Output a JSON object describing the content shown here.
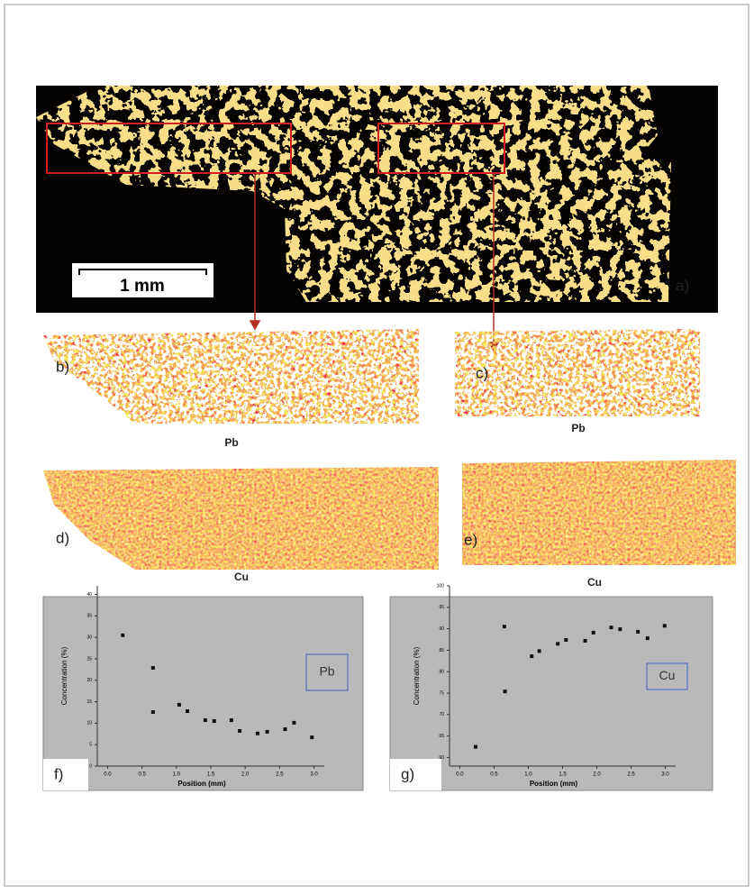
{
  "figure": {
    "panel_labels": [
      "a)",
      "b)",
      "c)",
      "d)",
      "e)",
      "f)",
      "g)"
    ],
    "scale_bar": "1 mm",
    "map_labels": [
      "Pb",
      "Pb",
      "Cu",
      "Cu"
    ]
  },
  "chart_data": [
    {
      "type": "scatter",
      "x_label": "Position (mm)",
      "y_label": "Concentration (%)",
      "xlim": [
        -0.15,
        3.15
      ],
      "ylim": [
        0,
        42
      ],
      "xticks": [
        {
          "value": 0,
          "label": "0.0"
        },
        0.5,
        {
          "value": 1,
          "label": "1.0"
        },
        1.5,
        {
          "value": 2,
          "label": "2.0"
        },
        2.5,
        {
          "value": 3,
          "label": "3.0"
        }
      ],
      "yticks": [
        0,
        5,
        10,
        15,
        20,
        25,
        30,
        35,
        40
      ],
      "series": [
        {
          "name": "Pb",
          "color": "#111111",
          "x": [
            0.22,
            0.66,
            0.66,
            1.04,
            1.16,
            1.42,
            1.55,
            1.8,
            1.92,
            2.18,
            2.32,
            2.58,
            2.71,
            2.97
          ],
          "values": [
            30.5,
            22.9,
            12.6,
            14.3,
            12.8,
            10.7,
            10.5,
            10.7,
            8.2,
            7.6,
            8.0,
            8.6,
            10.1,
            6.7
          ]
        }
      ]
    },
    {
      "type": "scatter",
      "x_label": "Position (mm)",
      "y_label": "Concentration (%)",
      "xlim": [
        -0.15,
        3.15
      ],
      "ylim": [
        58,
        100
      ],
      "xticks": [
        {
          "value": 0,
          "label": "0.0"
        },
        0.5,
        {
          "value": 1,
          "label": "1.0"
        },
        1.5,
        {
          "value": 2,
          "label": "2.0"
        },
        2.5,
        {
          "value": 3,
          "label": "3.0"
        }
      ],
      "yticks": [
        60,
        65,
        70,
        75,
        80,
        85,
        90,
        95,
        100
      ],
      "series": [
        {
          "name": "Cu",
          "color": "#111111",
          "x": [
            0.23,
            0.65,
            0.66,
            1.05,
            1.16,
            1.43,
            1.55,
            1.83,
            1.95,
            2.21,
            2.34,
            2.6,
            2.74,
            2.99
          ],
          "values": [
            62.5,
            90.5,
            75.4,
            83.6,
            84.8,
            86.5,
            87.4,
            87.2,
            89.1,
            90.3,
            89.9,
            89.3,
            87.8,
            90.7
          ]
        }
      ]
    }
  ]
}
